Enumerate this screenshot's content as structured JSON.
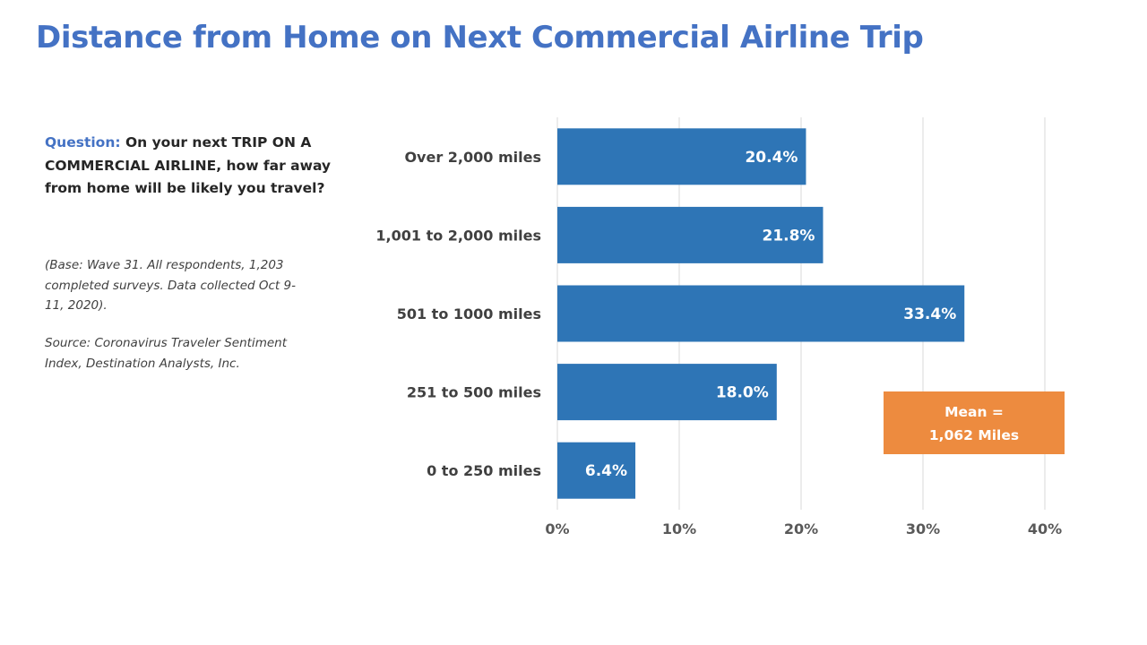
{
  "slide": {
    "title": "Distance from Home on Next Commercial Airline Trip"
  },
  "question": {
    "label": "Question:",
    "text": "On your next TRIP ON A COMMERCIAL AIRLINE, how far away from home will be likely you travel?"
  },
  "notes": {
    "base": "(Base: Wave 31. All respondents, 1,203 completed surveys. Data collected Oct 9-11, 2020).",
    "source": "Source: Coronavirus Traveler Sentiment Index, Destination Analysts, Inc."
  },
  "annotation": {
    "line1": "Mean =",
    "line2": "1,062 Miles"
  },
  "colors": {
    "title": "#4472C4",
    "bar": "#2E75B6",
    "annotation_box": "#ED8B3F",
    "gridline": "#D9D9D9"
  },
  "chart_data": {
    "type": "bar",
    "orientation": "horizontal",
    "categories": [
      "Over 2,000 miles",
      "1,001 to 2,000 miles",
      "501 to 1000 miles",
      "251 to 500 miles",
      "0 to 250 miles"
    ],
    "values": [
      20.4,
      21.8,
      33.4,
      18.0,
      6.4
    ],
    "value_labels": [
      "20.4%",
      "21.8%",
      "33.4%",
      "18.0%",
      "6.4%"
    ],
    "x_ticks": [
      0,
      10,
      20,
      30,
      40
    ],
    "x_tick_labels": [
      "0%",
      "10%",
      "20%",
      "30%",
      "40%"
    ],
    "xlim": [
      0,
      40
    ],
    "grid": true,
    "legend": "none"
  }
}
